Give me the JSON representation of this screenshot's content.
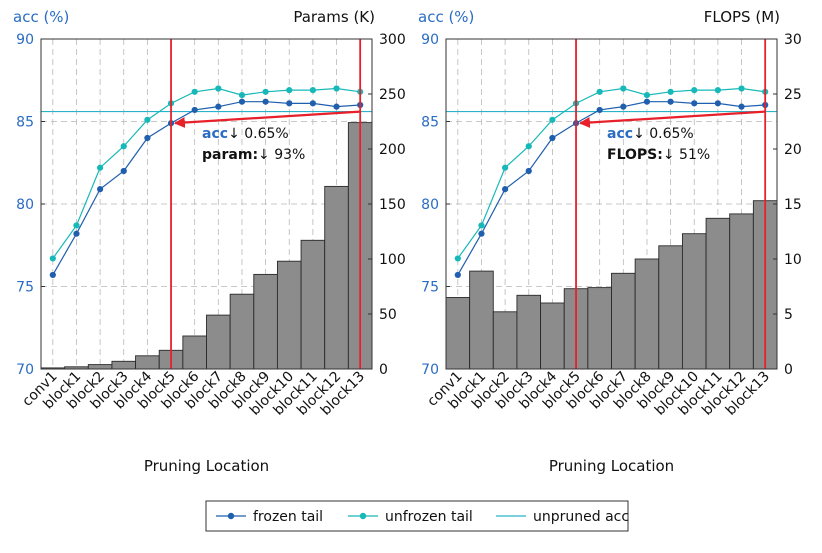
{
  "colors": {
    "frozen": "#1f5fae",
    "unfrozen": "#17b8b8",
    "unpruned": "#2ab3c8",
    "acc_axis": "#2b6cc4",
    "bar_fill": "#8c8c8c",
    "marker_line": "#e8202a",
    "grid": "#b8b8b8"
  },
  "shared": {
    "xlabel": "Pruning Location",
    "acc_axis_title": "acc (%)",
    "unpruned_acc": 85.6
  },
  "legend": {
    "frozen": "frozen tail",
    "unfrozen": "unfrozen tail",
    "unpruned": "unpruned acc"
  },
  "chart_data": [
    {
      "type": "bar",
      "categories": [
        "conv1",
        "block1",
        "block2",
        "block3",
        "block4",
        "block5",
        "block6",
        "block7",
        "block8",
        "block9",
        "block10",
        "block11",
        "block12",
        "block13"
      ],
      "xlabel": "Pruning Location",
      "ylabel_left": "acc (%)",
      "ylabel_right": "Params (K)",
      "ylim_left": [
        70,
        90
      ],
      "ylim_right": [
        0,
        300
      ],
      "yticks_left": [
        70,
        75,
        80,
        85,
        90
      ],
      "yticks_right": [
        0,
        50,
        100,
        150,
        200,
        250,
        300
      ],
      "bars": {
        "name": "Params (K)",
        "values": [
          1,
          2,
          4,
          7,
          12,
          17,
          30,
          49,
          68,
          86,
          98,
          117,
          166,
          224
        ]
      },
      "series": [
        {
          "name": "frozen tail",
          "values": [
            75.7,
            78.2,
            80.9,
            82.0,
            84.0,
            84.9,
            85.7,
            85.9,
            86.2,
            86.2,
            86.1,
            86.1,
            85.9,
            86.0
          ]
        },
        {
          "name": "unfrozen tail",
          "values": [
            76.7,
            78.7,
            82.2,
            83.5,
            85.1,
            86.1,
            86.8,
            87.0,
            86.6,
            86.8,
            86.9,
            86.9,
            87.0,
            86.8
          ]
        }
      ],
      "unpruned_acc": 85.6,
      "vlines_at": [
        "block5",
        "block13"
      ],
      "annotation": {
        "line1_bold": "acc",
        "line1_rest": "↓ 0.65%",
        "line2_bold": "param:",
        "line2_rest": "↓ 93%"
      },
      "grid": true
    },
    {
      "type": "bar",
      "categories": [
        "conv1",
        "block1",
        "block2",
        "block3",
        "block4",
        "block5",
        "block6",
        "block7",
        "block8",
        "block9",
        "block10",
        "block11",
        "block12",
        "block13"
      ],
      "xlabel": "Pruning Location",
      "ylabel_left": "acc (%)",
      "ylabel_right": "FLOPS (M)",
      "ylim_left": [
        70,
        90
      ],
      "ylim_right": [
        0,
        30
      ],
      "yticks_left": [
        70,
        75,
        80,
        85,
        90
      ],
      "yticks_right": [
        0,
        5,
        10,
        15,
        20,
        25,
        30
      ],
      "bars": {
        "name": "FLOPS (M)",
        "values": [
          6.5,
          8.9,
          5.2,
          6.7,
          6.0,
          7.3,
          7.4,
          8.7,
          10.0,
          11.2,
          12.3,
          13.7,
          14.1,
          15.3
        ]
      },
      "series": [
        {
          "name": "frozen tail",
          "values": [
            75.7,
            78.2,
            80.9,
            82.0,
            84.0,
            84.9,
            85.7,
            85.9,
            86.2,
            86.2,
            86.1,
            86.1,
            85.9,
            86.0
          ]
        },
        {
          "name": "unfrozen tail",
          "values": [
            76.7,
            78.7,
            82.2,
            83.5,
            85.1,
            86.1,
            86.8,
            87.0,
            86.6,
            86.8,
            86.9,
            86.9,
            87.0,
            86.8
          ]
        }
      ],
      "unpruned_acc": 85.6,
      "vlines_at": [
        "block5",
        "block13"
      ],
      "annotation": {
        "line1_bold": "acc",
        "line1_rest": "↓ 0.65%",
        "line2_bold": "FLOPS:",
        "line2_rest": "↓ 51%"
      },
      "grid": true
    }
  ]
}
